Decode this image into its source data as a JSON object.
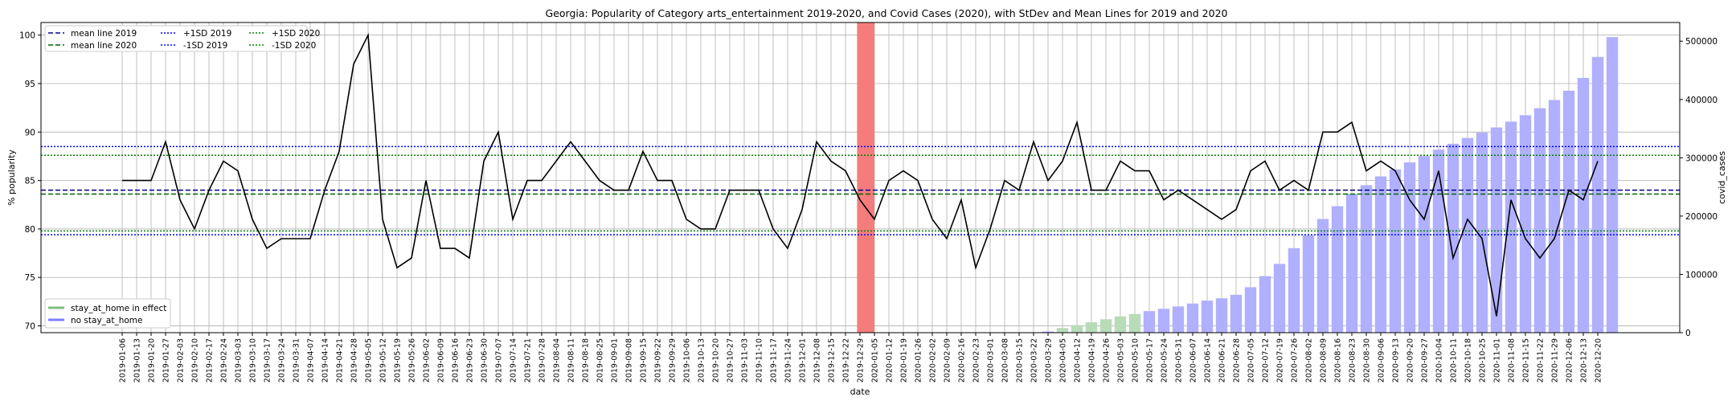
{
  "chart_data": {
    "type": "line",
    "title": "Georgia: Popularity of Category arts_entertainment 2019-2020, and Covid Cases (2020), with StDev and Mean Lines for 2019 and 2020",
    "xlabel": "date",
    "ylabel": "% popularity",
    "y2label": "covid_cases",
    "ylim": [
      69.3,
      101.3
    ],
    "y2lim": [
      0,
      532000
    ],
    "yticks": [
      70,
      75,
      80,
      85,
      90,
      95,
      100
    ],
    "y2ticks": [
      0,
      100000,
      200000,
      300000,
      400000,
      500000
    ],
    "grid": true,
    "categories": [
      "2019-01-06",
      "2019-01-13",
      "2019-01-20",
      "2019-01-27",
      "2019-02-03",
      "2019-02-10",
      "2019-02-17",
      "2019-02-24",
      "2019-03-03",
      "2019-03-10",
      "2019-03-17",
      "2019-03-24",
      "2019-03-31",
      "2019-04-07",
      "2019-04-14",
      "2019-04-21",
      "2019-04-28",
      "2019-05-05",
      "2019-05-12",
      "2019-05-19",
      "2019-05-26",
      "2019-06-02",
      "2019-06-09",
      "2019-06-16",
      "2019-06-23",
      "2019-06-30",
      "2019-07-07",
      "2019-07-14",
      "2019-07-21",
      "2019-07-28",
      "2019-08-04",
      "2019-08-11",
      "2019-08-18",
      "2019-08-25",
      "2019-09-01",
      "2019-09-08",
      "2019-09-15",
      "2019-09-22",
      "2019-09-29",
      "2019-10-06",
      "2019-10-13",
      "2019-10-20",
      "2019-10-27",
      "2019-11-03",
      "2019-11-10",
      "2019-11-17",
      "2019-11-24",
      "2019-12-01",
      "2019-12-08",
      "2019-12-15",
      "2019-12-22",
      "2019-12-29",
      "2020-01-05",
      "2020-01-12",
      "2020-01-19",
      "2020-01-26",
      "2020-02-02",
      "2020-02-09",
      "2020-02-16",
      "2020-02-23",
      "2020-03-01",
      "2020-03-08",
      "2020-03-15",
      "2020-03-22",
      "2020-03-29",
      "2020-04-05",
      "2020-04-12",
      "2020-04-19",
      "2020-04-26",
      "2020-05-03",
      "2020-05-10",
      "2020-05-17",
      "2020-05-24",
      "2020-05-31",
      "2020-06-07",
      "2020-06-14",
      "2020-06-21",
      "2020-06-28",
      "2020-07-05",
      "2020-07-12",
      "2020-07-19",
      "2020-07-26",
      "2020-08-02",
      "2020-08-09",
      "2020-08-16",
      "2020-08-23",
      "2020-08-30",
      "2020-09-06",
      "2020-09-13",
      "2020-09-20",
      "2020-09-27",
      "2020-10-04",
      "2020-10-11",
      "2020-10-18",
      "2020-10-25",
      "2020-11-01",
      "2020-11-08",
      "2020-11-15",
      "2020-11-22",
      "2020-11-29",
      "2020-12-06",
      "2020-12-13",
      "2020-12-20"
    ],
    "xtick_labels": [
      "2019-01-06",
      "2019-01-13",
      "2019-01-20",
      "2019-01-27",
      "2019-02-03",
      "2019-02-10",
      "2019-02-17",
      "2019-02-24",
      "2019-03-03",
      "2019-03-10",
      "2019-03-17",
      "2019-03-24",
      "2019-03-31",
      "2019-04-07",
      "2019-04-14",
      "2019-04-21",
      "2019-04-28",
      "2019-05-05",
      "2019-05-12",
      "2019-05-19",
      "2019-05-26",
      "2019-06-02",
      "2019-06-09",
      "2019-06-16",
      "2019-06-23",
      "2019-06-30",
      "2019-07-07",
      "2019-07-14",
      "2019-07-21",
      "2019-07-28",
      "2019-08-04",
      "2019-08-11",
      "2019-08-18",
      "2019-08-25",
      "2019-09-01",
      "2019-09-08",
      "2019-09-15",
      "2019-09-22",
      "2019-09-29",
      "2019-10-06",
      "2019-10-13",
      "2019-10-20",
      "2019-10-27",
      "2019-11-03",
      "2019-11-10",
      "2019-11-17",
      "2019-11-24",
      "2019-12-01",
      "2019-12-08",
      "2019-12-15",
      "2019-12-22",
      "2019-12-29",
      "2020-01-05",
      "2020-01-12",
      "2020-01-19",
      "2020-01-26",
      "2020-02-02",
      "2020-02-09",
      "2020-02-16",
      "2020-02-23",
      "2020-03-01",
      "2020-03-08",
      "2020-03-15",
      "2020-03-22",
      "2020-03-29",
      "2020-04-05",
      "2020-04-12",
      "2020-04-19",
      "2020-04-26",
      "2020-05-03",
      "2020-05-10",
      "2020-05-17",
      "2020-05-24",
      "2020-05-31",
      "2020-06-07",
      "2020-06-14",
      "2020-06-21",
      "2020-06-28",
      "2020-07-05",
      "2020-07-12",
      "2020-07-19",
      "2020-07-26",
      "2020-08-02",
      "2020-08-09",
      "2020-08-16",
      "2020-08-23",
      "2020-08-30",
      "2020-09-06",
      "2020-09-13",
      "2020-09-20",
      "2020-09-27",
      "2020-10-04",
      "2020-10-11",
      "2020-10-18",
      "2020-10-25",
      "2020-11-01",
      "2020-11-08",
      "2020-11-15",
      "2020-11-22",
      "2020-11-29",
      "2020-12-06",
      "2020-12-13",
      "2020-12-20"
    ],
    "popularity": [
      85,
      85,
      85,
      89,
      83,
      80,
      84,
      87,
      86,
      81,
      78,
      79,
      79,
      79,
      84,
      88,
      97,
      100,
      81,
      76,
      77,
      85,
      78,
      78,
      77,
      87,
      90,
      81,
      85,
      85,
      87,
      89,
      87,
      85,
      84,
      84,
      88,
      85,
      85,
      81,
      80,
      80,
      84,
      84,
      84,
      80,
      78,
      82,
      89,
      87,
      86,
      83,
      81,
      85,
      86,
      85,
      81,
      79,
      83,
      76,
      80,
      85,
      84,
      89,
      85,
      87,
      91,
      84,
      84,
      87,
      86,
      86,
      83,
      84,
      83,
      82,
      81,
      82,
      86,
      87,
      84,
      85,
      84,
      90,
      90,
      91,
      86,
      87,
      86,
      83,
      81,
      86,
      77,
      81,
      79,
      71,
      83,
      79,
      77,
      79,
      84,
      83,
      87
    ],
    "covid_cases": [
      null,
      null,
      null,
      null,
      null,
      null,
      null,
      null,
      null,
      null,
      null,
      null,
      null,
      null,
      null,
      null,
      null,
      null,
      null,
      null,
      null,
      null,
      null,
      null,
      null,
      null,
      null,
      null,
      null,
      null,
      null,
      null,
      null,
      null,
      null,
      null,
      null,
      null,
      null,
      null,
      null,
      null,
      null,
      null,
      null,
      null,
      null,
      null,
      null,
      null,
      null,
      null,
      null,
      null,
      null,
      null,
      null,
      null,
      null,
      null,
      null,
      null,
      null,
      null,
      2000,
      8000,
      13000,
      18000,
      23000,
      28000,
      32000,
      37000,
      41000,
      45000,
      50000,
      55000,
      59000,
      65000,
      78000,
      97000,
      118000,
      145000,
      167000,
      195000,
      217000,
      238000,
      253000,
      268000,
      280000,
      292000,
      303000,
      314000,
      324000,
      334000,
      343000,
      352000,
      362000,
      373000,
      385000,
      399000,
      415000,
      437000,
      473000,
      507000
    ],
    "stay_at_home_start": "2020-04-05",
    "stay_at_home_end": "2020-05-10",
    "highlight_week": "2019-12-29",
    "mean_2019": 84.0,
    "mean_2020": 83.6,
    "plus1sd_2019": 88.5,
    "minus1sd_2019": 79.4,
    "plus1sd_2020": 87.6,
    "minus1sd_2020": 79.8,
    "legend_lines": [
      {
        "label": "mean line 2019",
        "style": "dashed",
        "color": "#00008b"
      },
      {
        "label": "mean line 2020",
        "style": "dashed",
        "color": "#006400"
      },
      {
        "label": "+1SD 2019",
        "style": "dotted",
        "color": "#0000ff"
      },
      {
        "label": "-1SD 2019",
        "style": "dotted",
        "color": "#0000ff"
      },
      {
        "label": "+1SD 2020",
        "style": "dotted",
        "color": "#008000"
      },
      {
        "label": "-1SD 2020",
        "style": "dotted",
        "color": "#008000"
      }
    ],
    "legend_bars": [
      {
        "label": "stay_at_home in effect",
        "color": "#7fbf7f"
      },
      {
        "label": "no stay_at_home",
        "color": "#7f7fff"
      }
    ],
    "colors": {
      "line": "#000000",
      "bar_no_stay": "#b0b0ff",
      "bar_stay": "#b8dcb8",
      "highlight": "#f47c7c",
      "grid": "#b0b0b0"
    }
  }
}
